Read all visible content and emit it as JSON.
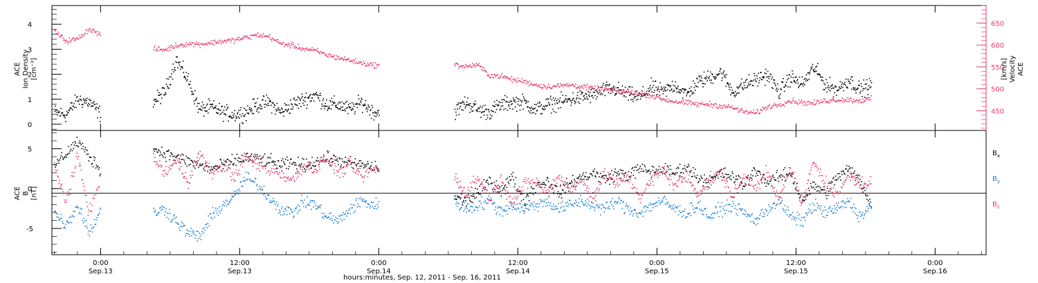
{
  "x_axis": {
    "ticks": [
      {
        "time": "0:00",
        "date": "Sep.13",
        "hours": 24
      },
      {
        "time": "12:00",
        "date": "Sep.13",
        "hours": 36
      },
      {
        "time": "0:00",
        "date": "Sep.14",
        "hours": 48
      },
      {
        "time": "12:00",
        "date": "Sep.14",
        "hours": 60
      },
      {
        "time": "0:00",
        "date": "Sep.15",
        "hours": 72
      },
      {
        "time": "12:00",
        "date": "Sep.15",
        "hours": 84
      },
      {
        "time": "0:00",
        "date": "Sep.16",
        "hours": 96
      }
    ],
    "xlim_hours": [
      19.8,
      100.4
    ],
    "label": "hours:minutes, Sep. 12, 2011 - Sep. 16, 2011"
  },
  "colors": {
    "black": "#000000",
    "blue": "#1a7fd6",
    "red": "#e83a6a"
  },
  "chart_data": [
    {
      "type": "scatter",
      "panel": "top",
      "left_axis": {
        "label_lines": [
          "ACE",
          "Ion Density",
          "[cm⁻³]"
        ],
        "ylim": [
          -0.25,
          4.75
        ],
        "ticks": [
          0,
          1,
          2,
          3,
          4
        ]
      },
      "right_axis": {
        "label_lines": [
          "ACE",
          "Velocity",
          "[km/s]"
        ],
        "ylim": [
          405,
          690
        ],
        "ticks": [
          450,
          500,
          550,
          600,
          650
        ],
        "color": "#e83a6a"
      },
      "data_gaps_hours": [
        [
          24.0,
          28.5
        ],
        [
          48.0,
          54.5
        ]
      ],
      "series": [
        {
          "axis": "left",
          "color": "black",
          "x": [
            20,
            21,
            22,
            23,
            24,
            28.5,
            29.5,
            30.5,
            31.5,
            32.5,
            33.5,
            34.5,
            35.5,
            36.5,
            37.5,
            38.5,
            39.5,
            40.5,
            41.5,
            42.5,
            43.5,
            44.5,
            45.5,
            46.5,
            47.5,
            54.5,
            55.5,
            56.5,
            57.5,
            58.5,
            59.5,
            60.5,
            61.5,
            62.5,
            63.5,
            64.5,
            65.5,
            66.5,
            67.5,
            68.5,
            69.5,
            70.5,
            71.5,
            72.5,
            73.5,
            74.5,
            75.5,
            76.5,
            77.5,
            78.5,
            79.5,
            80.5,
            81.5,
            82.5,
            83.5,
            84.5,
            85.5,
            86.5,
            87.5,
            88.5,
            89.5,
            90.5
          ],
          "y": [
            0.5,
            0.4,
            1.0,
            0.9,
            0.4,
            0.9,
            1.3,
            2.6,
            1.8,
            0.6,
            0.7,
            0.5,
            0.4,
            0.5,
            0.8,
            0.9,
            0.5,
            0.8,
            1.0,
            1.2,
            0.8,
            0.8,
            0.6,
            0.9,
            0.5,
            0.5,
            0.9,
            0.6,
            0.5,
            0.8,
            0.9,
            0.9,
            0.6,
            0.8,
            0.9,
            1.0,
            1.1,
            1.2,
            1.4,
            1.4,
            1.2,
            1.1,
            1.5,
            1.3,
            1.6,
            1.2,
            1.7,
            1.9,
            2.1,
            1.3,
            1.6,
            1.8,
            2.0,
            1.3,
            1.9,
            1.6,
            2.3,
            1.6,
            1.4,
            1.8,
            1.4,
            1.6
          ]
        },
        {
          "axis": "right",
          "color": "red",
          "x": [
            20,
            21,
            22,
            23,
            24,
            28.5,
            29.5,
            30.5,
            31.5,
            32.5,
            33.5,
            34.5,
            35.5,
            36.5,
            37.5,
            38.5,
            39.5,
            40.5,
            41.5,
            42.5,
            43.5,
            44.5,
            45.5,
            46.5,
            47.5,
            54.5,
            55.5,
            56.5,
            57.5,
            58.5,
            59.5,
            60.5,
            61.5,
            62.5,
            63.5,
            64.5,
            65.5,
            66.5,
            67.5,
            68.5,
            69.5,
            70.5,
            71.5,
            72.5,
            73.5,
            74.5,
            75.5,
            76.5,
            77.5,
            78.5,
            79.5,
            80.5,
            81.5,
            82.5,
            83.5,
            84.5,
            85.5,
            86.5,
            87.5,
            88.5,
            89.5,
            90.5
          ],
          "y": [
            632,
            610,
            615,
            638,
            624,
            592,
            590,
            600,
            604,
            603,
            606,
            610,
            612,
            618,
            624,
            620,
            604,
            600,
            592,
            588,
            578,
            572,
            566,
            560,
            555,
            556,
            552,
            556,
            532,
            530,
            522,
            518,
            510,
            506,
            508,
            510,
            506,
            502,
            500,
            496,
            494,
            490,
            486,
            477,
            472,
            469,
            466,
            466,
            462,
            458,
            448,
            446,
            460,
            466,
            474,
            470,
            468,
            474,
            476,
            476,
            474,
            478
          ]
        }
      ]
    },
    {
      "type": "scatter",
      "panel": "bottom",
      "left_axis": {
        "label_lines": [
          "ACE",
          "B",
          "[nT]"
        ],
        "ylim": [
          -8.3,
          7.3
        ],
        "ticks": [
          -5,
          0,
          5
        ]
      },
      "zero_line": true,
      "data_gaps_hours": [
        [
          24.0,
          28.5
        ],
        [
          48.0,
          54.5
        ]
      ],
      "series": [
        {
          "name": "Bx",
          "color": "black",
          "x": [
            20,
            21,
            22,
            23,
            24,
            28.5,
            29.5,
            30.5,
            31.5,
            32.5,
            33.5,
            34.5,
            35.5,
            36.5,
            37.5,
            38.5,
            39.5,
            40.5,
            41.5,
            42.5,
            43.5,
            44.5,
            45.5,
            46.5,
            47.5,
            54.5,
            55.5,
            56.5,
            57.5,
            58.5,
            59.5,
            60.5,
            61.5,
            62.5,
            63.5,
            64.5,
            65.5,
            66.5,
            67.5,
            68.5,
            69.5,
            70.5,
            71.5,
            72.5,
            73.5,
            74.5,
            75.5,
            76.5,
            77.5,
            78.5,
            79.5,
            80.5,
            81.5,
            82.5,
            83.5,
            84.5,
            85.5,
            86.5,
            87.5,
            88.5,
            89.5,
            90.5
          ],
          "y": [
            3.0,
            4.5,
            6.0,
            4.0,
            2.5,
            5.0,
            4.5,
            4.0,
            3.5,
            3.0,
            2.5,
            3.0,
            3.5,
            4.0,
            3.8,
            3.5,
            3.0,
            3.2,
            3.0,
            3.5,
            3.8,
            3.6,
            3.2,
            3.0,
            2.8,
            -1.0,
            -1.5,
            -0.5,
            1.0,
            0.0,
            1.5,
            -1.5,
            0.5,
            1.0,
            -0.5,
            0.8,
            1.5,
            2.0,
            1.2,
            2.0,
            1.8,
            2.5,
            2.2,
            2.5,
            2.0,
            2.8,
            1.5,
            1.0,
            2.0,
            1.5,
            0.5,
            2.5,
            0.8,
            1.5,
            2.0,
            -1.5,
            0.5,
            -0.5,
            1.5,
            2.5,
            1.0,
            -2.0
          ]
        },
        {
          "name": "By",
          "color": "blue",
          "x": [
            20,
            21,
            22,
            23,
            24,
            28.5,
            29.5,
            30.5,
            31.5,
            32.5,
            33.5,
            34.5,
            35.5,
            36.5,
            37.5,
            38.5,
            39.5,
            40.5,
            41.5,
            42.5,
            43.5,
            44.5,
            45.5,
            46.5,
            47.5,
            54.5,
            55.5,
            56.5,
            57.5,
            58.5,
            59.5,
            60.5,
            61.5,
            62.5,
            63.5,
            64.5,
            65.5,
            66.5,
            67.5,
            68.5,
            69.5,
            70.5,
            71.5,
            72.5,
            73.5,
            74.5,
            75.5,
            76.5,
            77.5,
            78.5,
            79.5,
            80.5,
            81.5,
            82.5,
            83.5,
            84.5,
            85.5,
            86.5,
            87.5,
            88.5,
            89.5,
            90.5
          ],
          "y": [
            -3.0,
            -4.5,
            -2.0,
            -5.5,
            -2.5,
            -3.0,
            -2.5,
            -4.0,
            -5.5,
            -6.0,
            -3.5,
            -2.0,
            -1.0,
            1.5,
            0.5,
            -1.0,
            -2.5,
            -3.0,
            -1.5,
            -2.0,
            -3.5,
            -4.0,
            -2.5,
            -1.5,
            -2.0,
            -1.5,
            -2.5,
            -2.0,
            -1.5,
            -2.8,
            -2.0,
            -2.5,
            -2.0,
            -1.5,
            -2.5,
            -2.0,
            -1.5,
            -2.0,
            -2.5,
            -1.5,
            -2.5,
            -3.0,
            -2.0,
            -1.5,
            -2.5,
            -3.0,
            -2.0,
            -3.5,
            -2.5,
            -2.0,
            -3.0,
            -4.0,
            -2.5,
            -1.5,
            -3.5,
            -4.0,
            -2.0,
            -3.0,
            -2.5,
            -1.5,
            -3.5,
            -2.0
          ]
        },
        {
          "name": "Bz",
          "color": "red",
          "x": [
            20,
            21,
            22,
            23,
            24,
            28.5,
            29.5,
            30.5,
            31.5,
            32.5,
            33.5,
            34.5,
            35.5,
            36.5,
            37.5,
            38.5,
            39.5,
            40.5,
            41.5,
            42.5,
            43.5,
            44.5,
            45.5,
            46.5,
            47.5,
            54.5,
            55.5,
            56.5,
            57.5,
            58.5,
            59.5,
            60.5,
            61.5,
            62.5,
            63.5,
            64.5,
            65.5,
            66.5,
            67.5,
            68.5,
            69.5,
            70.5,
            71.5,
            72.5,
            73.5,
            74.5,
            75.5,
            76.5,
            77.5,
            78.5,
            79.5,
            80.5,
            81.5,
            82.5,
            83.5,
            84.5,
            85.5,
            86.5,
            87.5,
            88.5,
            89.5,
            90.5
          ],
          "y": [
            2.5,
            -1.5,
            4.0,
            -3.0,
            1.5,
            4.0,
            2.0,
            3.5,
            1.0,
            4.5,
            2.0,
            3.0,
            1.5,
            4.0,
            3.0,
            2.5,
            2.0,
            1.0,
            3.0,
            2.5,
            4.0,
            2.0,
            3.0,
            1.5,
            2.5,
            1.5,
            -0.5,
            1.5,
            -1.0,
            1.0,
            -1.5,
            0.5,
            1.0,
            -0.5,
            1.5,
            0.0,
            1.0,
            -1.0,
            2.0,
            0.5,
            1.5,
            -1.0,
            1.0,
            2.5,
            0.5,
            1.5,
            -0.5,
            1.0,
            2.0,
            -1.0,
            1.5,
            0.5,
            2.0,
            -1.5,
            3.0,
            -2.0,
            3.5,
            1.0,
            -1.0,
            2.0,
            0.5,
            1.0
          ]
        }
      ],
      "legend": [
        {
          "letter": "B",
          "sub": "x",
          "color": "black"
        },
        {
          "letter": "B",
          "sub": "y",
          "color": "blue"
        },
        {
          "letter": "B",
          "sub": "z",
          "color": "red"
        }
      ]
    }
  ]
}
